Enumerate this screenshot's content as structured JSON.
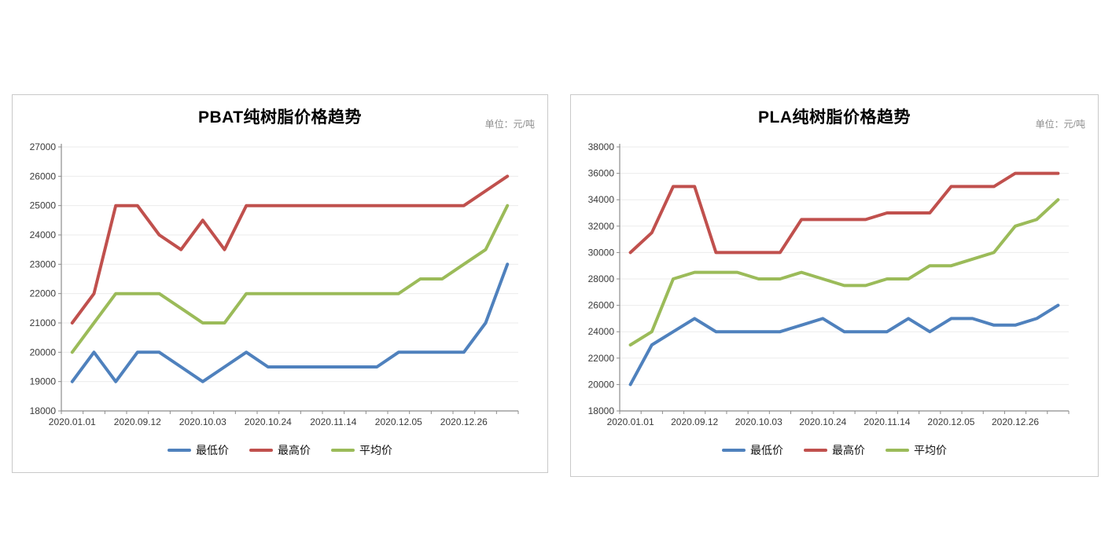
{
  "chart_data": [
    {
      "type": "line",
      "title": "PBAT纯树脂价格趋势",
      "unit_label": "单位：元/吨",
      "x_tick_labels": [
        "2020.01.01",
        "2020.09.12",
        "2020.10.03",
        "2020.10.24",
        "2020.11.14",
        "2020.12.05",
        "2020.12.26"
      ],
      "x_tick_positions": [
        0,
        3,
        6,
        9,
        12,
        15,
        18
      ],
      "n_points": 21,
      "ylim": [
        18000,
        27000
      ],
      "y_step": 1000,
      "grid": true,
      "legend_position": "bottom",
      "series": [
        {
          "name": "最低价",
          "key": "lowest",
          "color": "#4F81BD",
          "values": [
            19000,
            20000,
            19000,
            20000,
            20000,
            19500,
            19000,
            19500,
            20000,
            19500,
            19500,
            19500,
            19500,
            19500,
            19500,
            20000,
            20000,
            20000,
            20000,
            21000,
            23000
          ]
        },
        {
          "name": "最高价",
          "key": "highest",
          "color": "#C0504D",
          "values": [
            21000,
            22000,
            25000,
            25000,
            24000,
            23500,
            24500,
            23500,
            25000,
            25000,
            25000,
            25000,
            25000,
            25000,
            25000,
            25000,
            25000,
            25000,
            25000,
            25500,
            26000
          ]
        },
        {
          "name": "平均价",
          "key": "average",
          "color": "#9BBB59",
          "values": [
            20000,
            21000,
            22000,
            22000,
            22000,
            21500,
            21000,
            21000,
            22000,
            22000,
            22000,
            22000,
            22000,
            22000,
            22000,
            22000,
            22500,
            22500,
            23000,
            23500,
            25000
          ]
        }
      ]
    },
    {
      "type": "line",
      "title": "PLA纯树脂价格趋势",
      "unit_label": "单位：元/吨",
      "x_tick_labels": [
        "2020.01.01",
        "2020.09.12",
        "2020.10.03",
        "2020.10.24",
        "2020.11.14",
        "2020.12.05",
        "2020.12.26"
      ],
      "x_tick_positions": [
        0,
        3,
        6,
        9,
        12,
        15,
        18
      ],
      "n_points": 21,
      "ylim": [
        18000,
        38000
      ],
      "y_step": 2000,
      "grid": true,
      "legend_position": "bottom",
      "series": [
        {
          "name": "最低价",
          "key": "lowest",
          "color": "#4F81BD",
          "values": [
            20000,
            23000,
            24000,
            25000,
            24000,
            24000,
            24000,
            24000,
            24500,
            25000,
            24000,
            24000,
            24000,
            25000,
            24000,
            25000,
            25000,
            24500,
            24500,
            25000,
            26000
          ]
        },
        {
          "name": "最高价",
          "key": "highest",
          "color": "#C0504D",
          "values": [
            30000,
            31500,
            35000,
            35000,
            30000,
            30000,
            30000,
            30000,
            32500,
            32500,
            32500,
            32500,
            33000,
            33000,
            33000,
            35000,
            35000,
            35000,
            36000,
            36000,
            36000
          ]
        },
        {
          "name": "平均价",
          "key": "average",
          "color": "#9BBB59",
          "values": [
            23000,
            24000,
            28000,
            28500,
            28500,
            28500,
            28000,
            28000,
            28500,
            28000,
            27500,
            27500,
            28000,
            28000,
            29000,
            29000,
            29500,
            30000,
            32000,
            32500,
            34000
          ]
        }
      ]
    }
  ]
}
